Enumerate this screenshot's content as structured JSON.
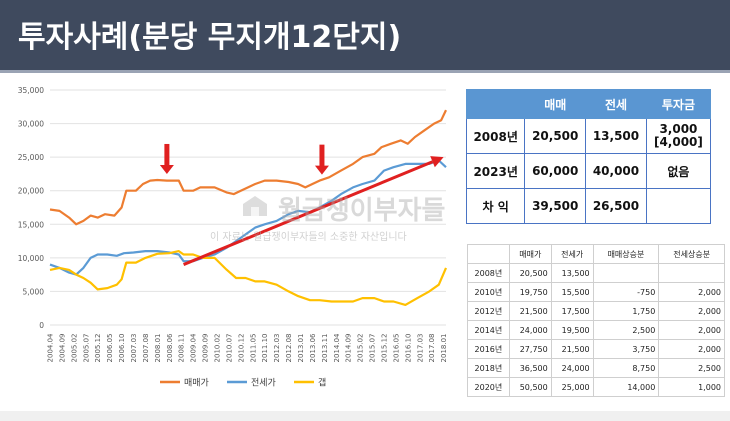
{
  "title": "투자사례(분당 무지개12단지)",
  "watermark": {
    "main": "월급쟁이부자들",
    "sub": "이 자료는 월급쟁이부자들의 소중한 자산입니다"
  },
  "summary_table": {
    "headers": [
      "",
      "매매",
      "전세",
      "투자금"
    ],
    "rows": [
      {
        "label": "2008년",
        "sale": "20,500",
        "jeonse": "13,500",
        "invest": "3,000\n[4,000]"
      },
      {
        "label": "2023년",
        "sale": "60,000",
        "jeonse": "40,000",
        "invest": "없음"
      },
      {
        "label": "차 익",
        "sale": "39,500",
        "jeonse": "26,500",
        "invest": ""
      }
    ]
  },
  "detail_table": {
    "headers": [
      "",
      "매매가",
      "전세가",
      "매매상승분",
      "전세상승분"
    ],
    "rows": [
      {
        "year": "2008년",
        "sale": "20,500",
        "jeonse": "13,500",
        "sale_up": "",
        "jeonse_up": ""
      },
      {
        "year": "2010년",
        "sale": "19,750",
        "jeonse": "15,500",
        "sale_up": "-750",
        "jeonse_up": "2,000"
      },
      {
        "year": "2012년",
        "sale": "21,500",
        "jeonse": "17,500",
        "sale_up": "1,750",
        "jeonse_up": "2,000"
      },
      {
        "year": "2014년",
        "sale": "24,000",
        "jeonse": "19,500",
        "sale_up": "2,500",
        "jeonse_up": "2,000"
      },
      {
        "year": "2016년",
        "sale": "27,750",
        "jeonse": "21,500",
        "sale_up": "3,750",
        "jeonse_up": "2,000"
      },
      {
        "year": "2018년",
        "sale": "36,500",
        "jeonse": "24,000",
        "sale_up": "8,750",
        "jeonse_up": "2,500"
      },
      {
        "year": "2020년",
        "sale": "50,500",
        "jeonse": "25,000",
        "sale_up": "14,000",
        "jeonse_up": "1,000"
      }
    ]
  },
  "colors": {
    "sale": "#ed7d31",
    "jeonse": "#5b9bd5",
    "gap": "#ffc000",
    "arrow": "#e02020",
    "title_bg": "#3f4a5e",
    "table_header": "#5a96d2"
  },
  "chart_data": {
    "type": "line",
    "title": "",
    "xlabel": "",
    "ylabel": "",
    "ylim": [
      0,
      35000
    ],
    "yticks": [
      "0",
      "5,000",
      "10,000",
      "15,000",
      "20,000",
      "25,000",
      "30,000",
      "35,000"
    ],
    "ytick_values": [
      0,
      5000,
      10000,
      15000,
      20000,
      25000,
      30000,
      35000
    ],
    "x_tick_labels": [
      "2004.04",
      "2004.09",
      "2005.02",
      "2005.07",
      "2005.12",
      "2006.05",
      "2006.10",
      "2007.03",
      "2007.08",
      "2008.01",
      "2008.06",
      "2008.11",
      "2009.04",
      "2009.09",
      "2010.02",
      "2010.07",
      "2010.12",
      "2011.05",
      "2011.10",
      "2012.03",
      "2012.08",
      "2013.01",
      "2013.06",
      "2013.11",
      "2014.04",
      "2014.09",
      "2015.02",
      "2015.07",
      "2015.12",
      "2016.05",
      "2016.10",
      "2017.03",
      "2017.08",
      "2018.01"
    ],
    "x_start": "2004-04",
    "x_end": "2018-02",
    "grid": true,
    "legend_position": "bottom",
    "series": [
      {
        "name": "매매가",
        "color_key": "sale",
        "points": [
          [
            "2004-04",
            17200
          ],
          [
            "2004-08",
            17000
          ],
          [
            "2004-12",
            16000
          ],
          [
            "2005-03",
            15000
          ],
          [
            "2005-06",
            15500
          ],
          [
            "2005-09",
            16300
          ],
          [
            "2005-12",
            16000
          ],
          [
            "2006-03",
            16500
          ],
          [
            "2006-07",
            16300
          ],
          [
            "2006-10",
            17500
          ],
          [
            "2006-12",
            20000
          ],
          [
            "2007-04",
            20000
          ],
          [
            "2007-07",
            21000
          ],
          [
            "2007-10",
            21500
          ],
          [
            "2008-01",
            21600
          ],
          [
            "2008-05",
            21500
          ],
          [
            "2008-10",
            21500
          ],
          [
            "2008-12",
            20000
          ],
          [
            "2009-04",
            20000
          ],
          [
            "2009-07",
            20500
          ],
          [
            "2010-01",
            20500
          ],
          [
            "2010-06",
            19750
          ],
          [
            "2010-09",
            19500
          ],
          [
            "2010-12",
            20000
          ],
          [
            "2011-03",
            20500
          ],
          [
            "2011-06",
            21000
          ],
          [
            "2011-10",
            21500
          ],
          [
            "2012-03",
            21500
          ],
          [
            "2012-08",
            21300
          ],
          [
            "2012-12",
            21000
          ],
          [
            "2013-03",
            20500
          ],
          [
            "2013-06",
            21000
          ],
          [
            "2013-09",
            21500
          ],
          [
            "2014-01",
            22000
          ],
          [
            "2014-06",
            23000
          ],
          [
            "2014-11",
            24000
          ],
          [
            "2015-03",
            25000
          ],
          [
            "2015-08",
            25500
          ],
          [
            "2015-11",
            26500
          ],
          [
            "2016-03",
            27000
          ],
          [
            "2016-07",
            27500
          ],
          [
            "2016-10",
            27000
          ],
          [
            "2017-01",
            28000
          ],
          [
            "2017-05",
            29000
          ],
          [
            "2017-09",
            30000
          ],
          [
            "2017-12",
            30500
          ],
          [
            "2018-02",
            32000
          ]
        ]
      },
      {
        "name": "전세가",
        "color_key": "jeonse",
        "points": [
          [
            "2004-04",
            9000
          ],
          [
            "2004-08",
            8500
          ],
          [
            "2004-12",
            7800
          ],
          [
            "2005-03",
            7500
          ],
          [
            "2005-06",
            8500
          ],
          [
            "2005-09",
            10000
          ],
          [
            "2005-12",
            10500
          ],
          [
            "2006-04",
            10500
          ],
          [
            "2006-08",
            10300
          ],
          [
            "2006-11",
            10700
          ],
          [
            "2007-03",
            10800
          ],
          [
            "2007-08",
            11000
          ],
          [
            "2008-01",
            11000
          ],
          [
            "2008-06",
            10800
          ],
          [
            "2008-10",
            10500
          ],
          [
            "2008-12",
            9500
          ],
          [
            "2009-04",
            9500
          ],
          [
            "2009-08",
            10000
          ],
          [
            "2010-01",
            10500
          ],
          [
            "2010-06",
            11500
          ],
          [
            "2010-10",
            12500
          ],
          [
            "2011-02",
            13500
          ],
          [
            "2011-06",
            14500
          ],
          [
            "2011-10",
            15000
          ],
          [
            "2012-03",
            15500
          ],
          [
            "2012-08",
            16500
          ],
          [
            "2012-12",
            17000
          ],
          [
            "2013-05",
            16800
          ],
          [
            "2013-09",
            17500
          ],
          [
            "2014-02",
            18500
          ],
          [
            "2014-06",
            19500
          ],
          [
            "2014-11",
            20500
          ],
          [
            "2015-03",
            21000
          ],
          [
            "2015-08",
            21500
          ],
          [
            "2015-12",
            23000
          ],
          [
            "2016-04",
            23500
          ],
          [
            "2016-09",
            24000
          ],
          [
            "2017-02",
            24000
          ],
          [
            "2017-07",
            24000
          ],
          [
            "2017-11",
            24500
          ],
          [
            "2018-02",
            23500
          ]
        ]
      },
      {
        "name": "갭",
        "color_key": "gap",
        "points": [
          [
            "2004-04",
            8200
          ],
          [
            "2004-08",
            8500
          ],
          [
            "2004-12",
            8200
          ],
          [
            "2005-03",
            7500
          ],
          [
            "2005-06",
            7000
          ],
          [
            "2005-09",
            6300
          ],
          [
            "2005-12",
            5300
          ],
          [
            "2006-04",
            5500
          ],
          [
            "2006-08",
            6000
          ],
          [
            "2006-10",
            6800
          ],
          [
            "2006-12",
            9300
          ],
          [
            "2007-04",
            9300
          ],
          [
            "2007-08",
            10000
          ],
          [
            "2008-01",
            10600
          ],
          [
            "2008-06",
            10700
          ],
          [
            "2008-10",
            11000
          ],
          [
            "2008-12",
            10500
          ],
          [
            "2009-04",
            10500
          ],
          [
            "2009-08",
            10000
          ],
          [
            "2010-01",
            10000
          ],
          [
            "2010-06",
            8250
          ],
          [
            "2010-10",
            7000
          ],
          [
            "2011-02",
            7000
          ],
          [
            "2011-06",
            6500
          ],
          [
            "2011-10",
            6500
          ],
          [
            "2012-03",
            6000
          ],
          [
            "2012-08",
            5000
          ],
          [
            "2012-12",
            4300
          ],
          [
            "2013-05",
            3700
          ],
          [
            "2013-09",
            3700
          ],
          [
            "2014-02",
            3500
          ],
          [
            "2014-06",
            3500
          ],
          [
            "2014-11",
            3500
          ],
          [
            "2015-03",
            4000
          ],
          [
            "2015-08",
            4000
          ],
          [
            "2015-12",
            3500
          ],
          [
            "2016-04",
            3500
          ],
          [
            "2016-09",
            3000
          ],
          [
            "2017-02",
            4000
          ],
          [
            "2017-07",
            5000
          ],
          [
            "2017-11",
            6000
          ],
          [
            "2018-02",
            8500
          ]
        ]
      }
    ],
    "annotations": [
      {
        "type": "down-arrow",
        "at": "2008-05",
        "value": 21600
      },
      {
        "type": "down-arrow",
        "at": "2013-10",
        "value": 21500
      },
      {
        "type": "trend-arrow",
        "from": [
          "2008-12",
          9000
        ],
        "to": [
          "2018-01",
          25000
        ]
      }
    ]
  }
}
